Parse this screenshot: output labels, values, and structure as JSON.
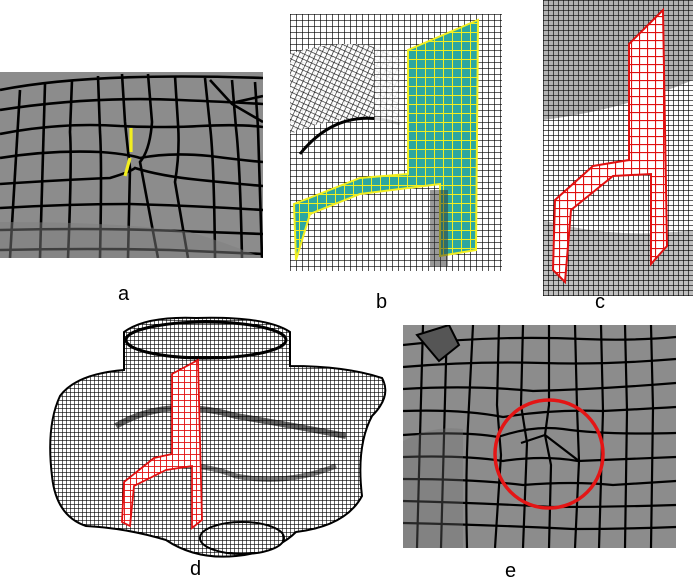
{
  "figure": {
    "panels": [
      {
        "label": "a",
        "description_icon": "quad-mesh-surface-seam-highlight"
      },
      {
        "label": "b",
        "description_icon": "mesh-sheet-highlight-yellow"
      },
      {
        "label": "c",
        "description_icon": "mesh-sheet-highlight-red"
      },
      {
        "label": "d",
        "description_icon": "full-hex-mesh-model"
      },
      {
        "label": "e",
        "description_icon": "quad-mesh-singularity-circle"
      }
    ],
    "colors": {
      "mesh_face": "#8c8c8c",
      "mesh_edge": "#000000",
      "highlight_yellow": "#f2ef20",
      "highlight_cyan": "#2ca7a0",
      "highlight_red": "#e01010",
      "circle_red": "#e41515"
    }
  }
}
